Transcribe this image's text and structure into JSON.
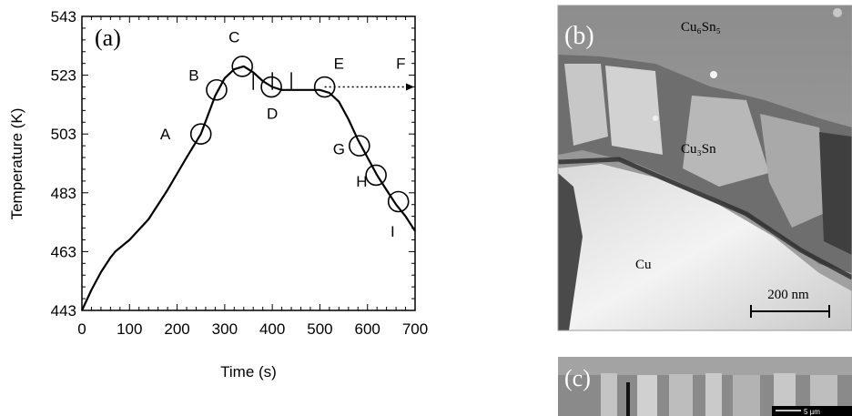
{
  "chart_data": {
    "type": "line",
    "panel_label": "(a)",
    "xlabel": "Time (s)",
    "ylabel": "Temperature (K)",
    "xlim": [
      0,
      700
    ],
    "ylim": [
      443,
      543
    ],
    "xticks": [
      0,
      100,
      200,
      300,
      400,
      500,
      600,
      700
    ],
    "yticks": [
      443,
      463,
      483,
      503,
      523,
      543
    ],
    "series": [
      {
        "x": [
          0,
          20,
          40,
          60,
          70,
          100,
          140,
          180,
          220,
          250,
          280,
          300,
          320,
          340,
          360,
          380,
          400,
          420,
          440,
          460,
          480,
          500,
          520,
          540,
          560,
          580,
          600,
          620,
          640,
          660,
          680,
          700
        ],
        "values": [
          443,
          450,
          456,
          461,
          463,
          467,
          474,
          484,
          495,
          503,
          516,
          522,
          525,
          526,
          524,
          521,
          519,
          518,
          518,
          518,
          518,
          518,
          517,
          514,
          508,
          501,
          495,
          489,
          484,
          479,
          475,
          470
        ]
      }
    ],
    "extension": {
      "from_x": 510,
      "to_x": 700,
      "y": 519,
      "style": "dotted-arrow"
    },
    "annotations": [
      {
        "label": "A",
        "x": 250,
        "y": 503,
        "label_x": 175,
        "label_y": 503
      },
      {
        "label": "B",
        "x": 283,
        "y": 518,
        "label_x": 235,
        "label_y": 523
      },
      {
        "label": "C",
        "x": 337,
        "y": 526,
        "label_x": 320,
        "label_y": 536
      },
      {
        "label": "D",
        "x": 398,
        "y": 519,
        "label_x": 400,
        "label_y": 510
      },
      {
        "label": "E",
        "x": 510,
        "y": 519,
        "label_x": 540,
        "label_y": 527
      },
      {
        "label": "F",
        "x": 700,
        "y": 519,
        "label_x": 670,
        "label_y": 527
      },
      {
        "label": "G",
        "x": 583,
        "y": 499,
        "label_x": 540,
        "label_y": 498
      },
      {
        "label": "H",
        "x": 618,
        "y": 489,
        "label_x": 588,
        "label_y": 487
      },
      {
        "label": "I",
        "x": 665,
        "y": 480,
        "label_x": 653,
        "label_y": 470
      }
    ]
  },
  "micrograph_b": {
    "panel_label": "(b)",
    "layer_top": "Cu₆Sn₅",
    "layer_mid": "Cu₃Sn",
    "substrate": "Cu",
    "scale_bar": "200 nm"
  },
  "micrograph_c": {
    "panel_label": "(c)",
    "scale_bar": "5 µm"
  }
}
